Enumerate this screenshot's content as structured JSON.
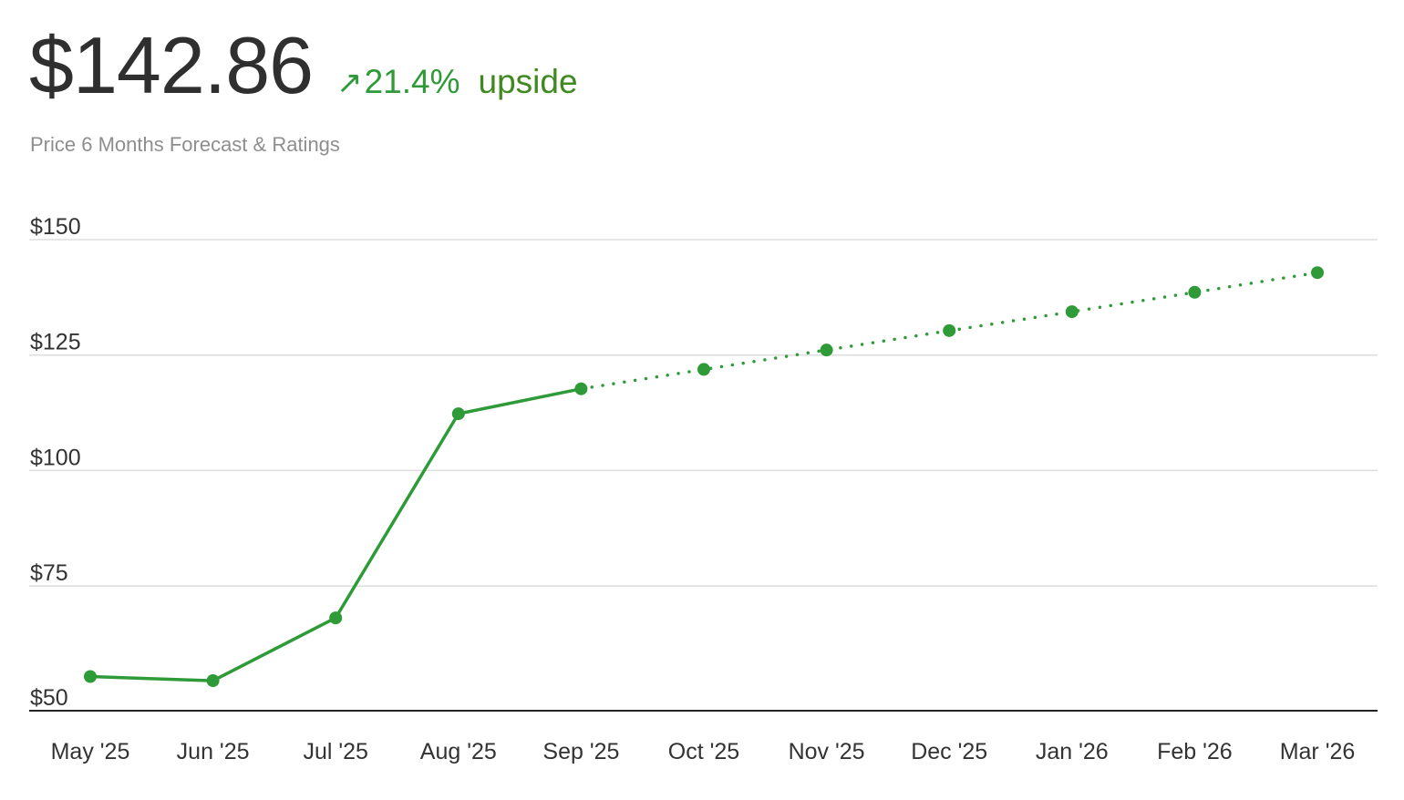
{
  "header": {
    "price": "$142.86",
    "arrow_icon": "arrow-up-right-icon",
    "arrow_glyph": "↗",
    "change_pct": "21.4%",
    "direction": "upside",
    "subtitle": "Price 6 Months Forecast & Ratings"
  },
  "colors": {
    "line": "#2e9a38",
    "grid": "#dddddd",
    "axis": "#222222",
    "direction_text": "#3f8a1e"
  },
  "chart_data": {
    "type": "line",
    "title": "",
    "xlabel": "",
    "ylabel": "",
    "categories": [
      "May '25",
      "Jun '25",
      "Jul '25",
      "Aug '25",
      "Sep '25",
      "Oct '25",
      "Nov '25",
      "Dec '25",
      "Jan '26",
      "Feb '26",
      "Mar '26"
    ],
    "y_ticks": [
      50,
      75,
      100,
      125,
      150
    ],
    "y_tick_labels": [
      "$50",
      "$75",
      "$100",
      "$125",
      "$150"
    ],
    "ylim": [
      48,
      150
    ],
    "grid": true,
    "series": [
      {
        "style": "solid",
        "values": [
          55.4,
          54.5,
          68.1,
          112.3,
          117.7,
          null,
          null,
          null,
          null,
          null,
          null
        ]
      },
      {
        "style": "dotted",
        "values": [
          null,
          null,
          null,
          null,
          117.7,
          121.9,
          126.1,
          130.3,
          134.4,
          138.6,
          142.86
        ]
      }
    ]
  }
}
